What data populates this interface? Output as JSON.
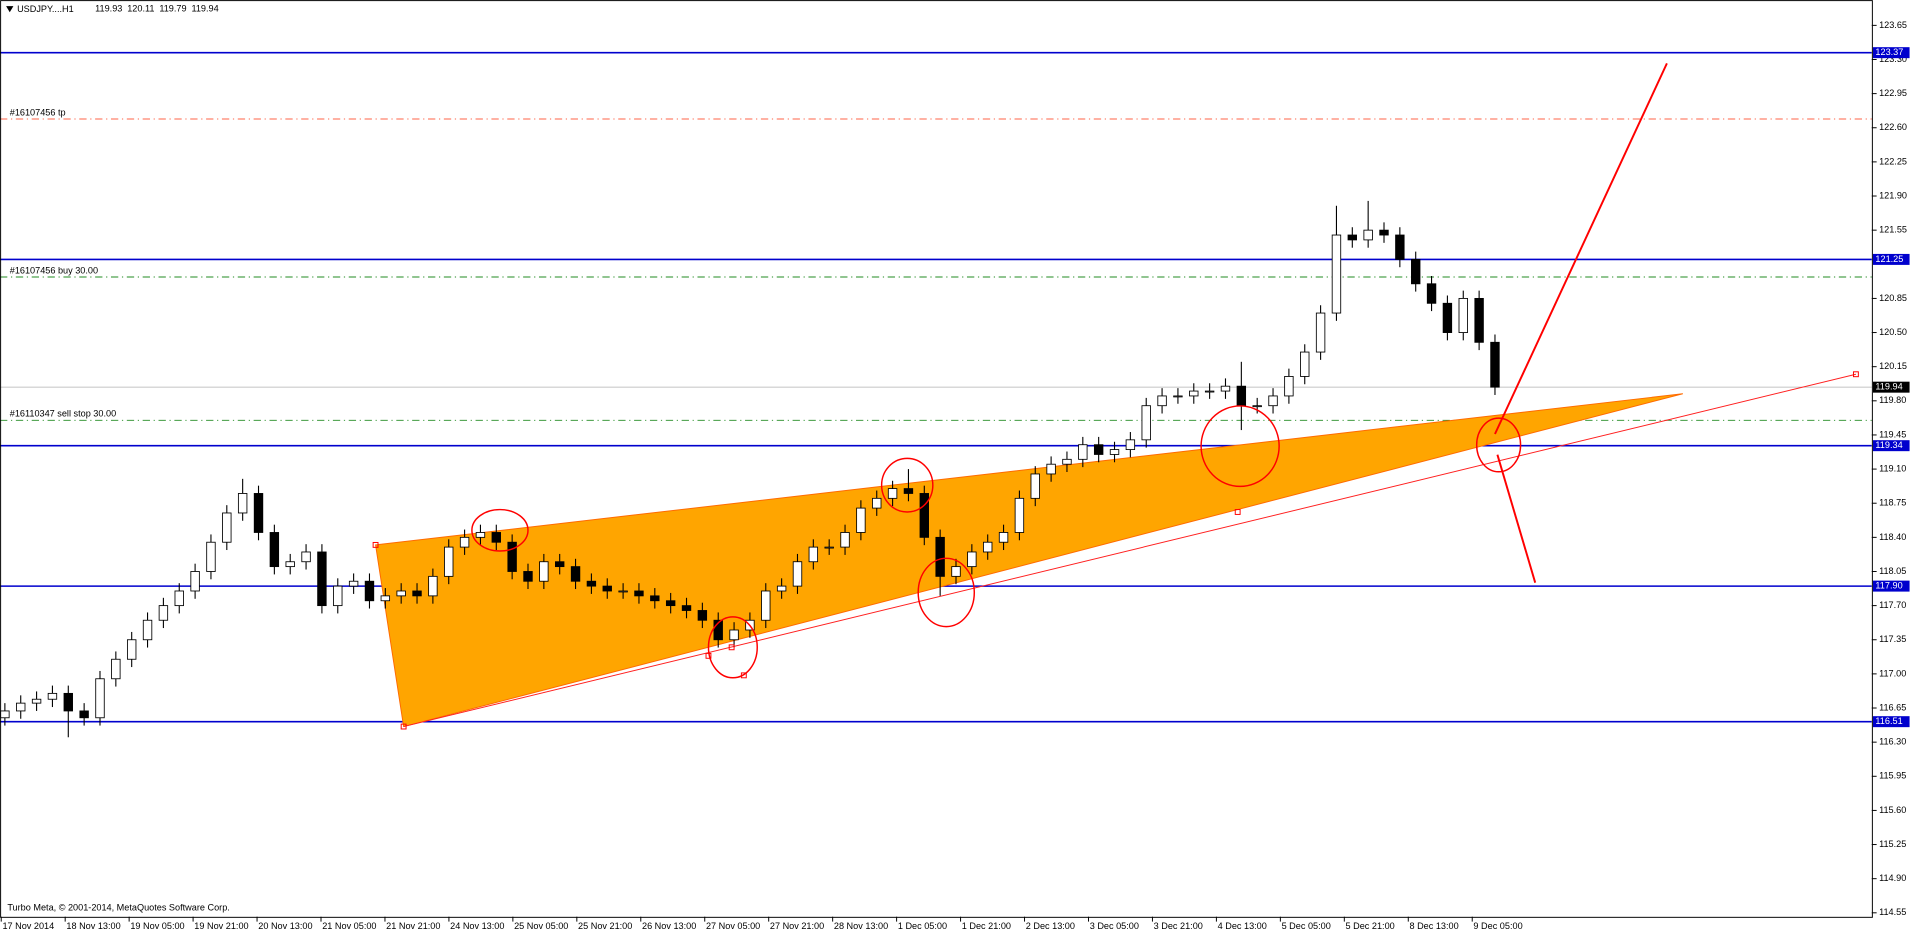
{
  "chart_data": {
    "type": "candlestick",
    "title": "USDJPY....H1",
    "header_values": [
      119.93,
      120.11,
      119.79,
      119.94
    ],
    "footer": "Turbo Meta, © 2001-2014, MetaQuotes Software Corp.",
    "ylim": [
      114.51,
      123.91
    ],
    "yticks": [
      123.65,
      {
        "value": 123.3,
        "label": "123.30"
      },
      122.95,
      {
        "value": 122.6,
        "label": "122.60"
      },
      122.25,
      {
        "value": 121.9,
        "label": "121.90"
      },
      121.55,
      120.85,
      {
        "value": 120.5,
        "label": "120.50"
      },
      120.15,
      {
        "value": 119.8,
        "label": "119.80"
      },
      119.45,
      {
        "value": 119.1,
        "label": "119.10"
      },
      118.75,
      {
        "value": 118.4,
        "label": "118.40"
      },
      118.05,
      {
        "value": 117.7,
        "label": "117.70"
      },
      117.35,
      {
        "value": 117.0,
        "label": "117.00"
      },
      116.65,
      {
        "value": 116.3,
        "label": "116.30"
      },
      115.95,
      {
        "value": 115.6,
        "label": "115.60"
      },
      115.25,
      {
        "value": 114.9,
        "label": "114.90"
      },
      114.55
    ],
    "x_labels": [
      "17 Nov 2014",
      "18 Nov 13:00",
      "19 Nov 05:00",
      "19 Nov 21:00",
      "20 Nov 13:00",
      "21 Nov 05:00",
      "21 Nov 21:00",
      "24 Nov 13:00",
      "25 Nov 05:00",
      "25 Nov 21:00",
      "26 Nov 13:00",
      "27 Nov 05:00",
      "27 Nov 21:00",
      "28 Nov 13:00",
      "1 Dec 05:00",
      "1 Dec 21:00",
      "2 Dec 13:00",
      "3 Dec 05:00",
      "3 Dec 21:00",
      "4 Dec 13:00",
      "5 Dec 05:00",
      "5 Dec 21:00",
      "8 Dec 13:00",
      "9 Dec 05:00"
    ],
    "levels": [
      {
        "value": 123.37,
        "label": "123.37"
      },
      {
        "value": 121.25,
        "label": "121.25"
      },
      {
        "value": 119.34,
        "label": "119.34"
      },
      {
        "value": 117.9,
        "label": "117.90"
      },
      {
        "value": 116.51,
        "label": "116.51"
      }
    ],
    "current": {
      "value": 119.94,
      "label": "119.94"
    },
    "orders": [
      {
        "label": "#16107456 tp",
        "value": 122.69,
        "color": "#ff6347"
      },
      {
        "label": "#16107456 buy 30.00",
        "value": 121.07,
        "color": "#228b22"
      },
      {
        "label": "#16110347 sell stop 30.00",
        "value": 119.6,
        "color": "#228b22"
      }
    ],
    "open": [
      116.55,
      116.62,
      116.7,
      116.74,
      116.8,
      116.62,
      116.55,
      116.95,
      117.15,
      117.35,
      117.55,
      117.7,
      117.85,
      118.05,
      118.35,
      118.65,
      118.85,
      118.45,
      118.1,
      118.15,
      118.25,
      117.7,
      117.9,
      117.95,
      117.75,
      117.8,
      117.85,
      117.8,
      118.0,
      118.3,
      118.4,
      118.45,
      118.35,
      118.05,
      117.95,
      118.15,
      118.1,
      117.95,
      117.9,
      117.85,
      117.85,
      117.8,
      117.75,
      117.7,
      117.65,
      117.55,
      117.35,
      117.45,
      117.55,
      117.85,
      117.9,
      118.15,
      118.3,
      118.3,
      118.45,
      118.7,
      118.8,
      118.9,
      118.85,
      118.4,
      118.0,
      118.1,
      118.25,
      118.35,
      118.45,
      118.8,
      119.05,
      119.15,
      119.2,
      119.35,
      119.25,
      119.3,
      119.4,
      119.75,
      119.85,
      119.85,
      119.9,
      119.9,
      119.95,
      119.75,
      119.75,
      119.85,
      120.05,
      120.3,
      120.7,
      121.5,
      121.45,
      121.55,
      121.5,
      121.25,
      121.0,
      120.8,
      120.5,
      120.85,
      120.4
    ],
    "high": [
      116.7,
      116.78,
      116.82,
      116.88,
      116.88,
      116.7,
      117.03,
      117.23,
      117.43,
      117.63,
      117.78,
      117.93,
      118.13,
      118.43,
      118.73,
      119.0,
      118.93,
      118.53,
      118.23,
      118.33,
      118.33,
      117.98,
      118.03,
      118.03,
      117.88,
      117.93,
      117.93,
      118.08,
      118.38,
      118.48,
      118.53,
      118.53,
      118.43,
      118.13,
      118.23,
      118.23,
      118.18,
      118.03,
      117.98,
      117.93,
      117.93,
      117.88,
      117.83,
      117.78,
      117.73,
      117.63,
      117.53,
      117.63,
      117.93,
      117.98,
      118.23,
      118.38,
      118.38,
      118.53,
      118.78,
      118.88,
      118.98,
      119.1,
      118.93,
      118.48,
      118.18,
      118.33,
      118.43,
      118.53,
      118.88,
      119.13,
      119.23,
      119.28,
      119.43,
      119.43,
      119.38,
      119.48,
      119.83,
      119.93,
      119.93,
      119.98,
      119.98,
      120.03,
      120.2,
      119.83,
      119.93,
      120.13,
      120.38,
      120.78,
      121.8,
      121.58,
      121.85,
      121.63,
      121.58,
      121.33,
      121.08,
      120.88,
      120.93,
      120.93,
      120.48
    ],
    "low": [
      116.47,
      116.54,
      116.62,
      116.66,
      116.35,
      116.47,
      116.47,
      116.87,
      117.07,
      117.27,
      117.47,
      117.62,
      117.77,
      117.97,
      118.27,
      118.57,
      118.37,
      118.02,
      118.02,
      118.07,
      117.62,
      117.62,
      117.82,
      117.67,
      117.67,
      117.72,
      117.72,
      117.72,
      117.92,
      118.22,
      118.32,
      118.27,
      117.97,
      117.87,
      117.87,
      118.02,
      117.87,
      117.82,
      117.77,
      117.77,
      117.72,
      117.67,
      117.62,
      117.57,
      117.47,
      117.27,
      117.27,
      117.37,
      117.47,
      117.77,
      117.82,
      118.07,
      118.22,
      118.22,
      118.37,
      118.62,
      118.72,
      118.77,
      118.32,
      117.8,
      117.92,
      118.02,
      118.17,
      118.27,
      118.37,
      118.72,
      118.97,
      119.07,
      119.12,
      119.17,
      119.17,
      119.22,
      119.32,
      119.67,
      119.77,
      119.77,
      119.82,
      119.82,
      119.5,
      119.67,
      119.67,
      119.77,
      119.97,
      120.22,
      120.62,
      121.37,
      121.37,
      121.42,
      121.17,
      120.92,
      120.72,
      120.42,
      120.42,
      120.32,
      119.86
    ],
    "close": [
      116.62,
      116.7,
      116.74,
      116.8,
      116.62,
      116.55,
      116.95,
      117.15,
      117.35,
      117.55,
      117.7,
      117.85,
      118.05,
      118.35,
      118.65,
      118.85,
      118.45,
      118.1,
      118.15,
      118.25,
      117.7,
      117.9,
      117.95,
      117.75,
      117.8,
      117.85,
      117.8,
      118.0,
      118.3,
      118.4,
      118.45,
      118.35,
      118.05,
      117.95,
      118.15,
      118.1,
      117.95,
      117.9,
      117.85,
      117.85,
      117.8,
      117.75,
      117.7,
      117.65,
      117.55,
      117.35,
      117.45,
      117.55,
      117.85,
      117.9,
      118.15,
      118.3,
      118.3,
      118.45,
      118.7,
      118.8,
      118.9,
      118.85,
      118.4,
      118.0,
      118.1,
      118.25,
      118.35,
      118.45,
      118.8,
      119.05,
      119.15,
      119.2,
      119.35,
      119.25,
      119.3,
      119.4,
      119.75,
      119.85,
      119.85,
      119.9,
      119.9,
      119.95,
      119.75,
      119.75,
      119.85,
      120.05,
      120.3,
      120.7,
      121.5,
      121.45,
      121.55,
      121.5,
      121.25,
      121.0,
      120.8,
      120.5,
      120.85,
      120.4,
      119.94
    ]
  }
}
